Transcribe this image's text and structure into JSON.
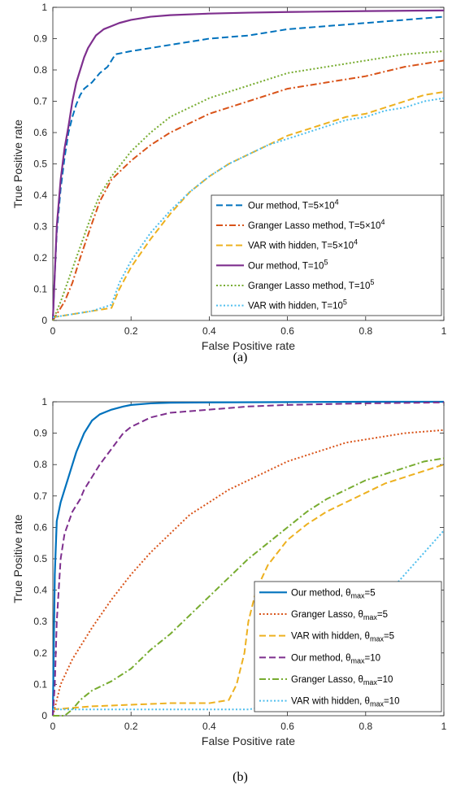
{
  "chart_data": [
    {
      "type": "line",
      "caption": "(a)",
      "xlabel": "False Positive rate",
      "ylabel": "True Positive rate",
      "xlim": [
        0,
        1
      ],
      "ylim": [
        0,
        1
      ],
      "xticks": [
        "0",
        "0.2",
        "0.4",
        "0.6",
        "0.8",
        "1"
      ],
      "yticks": [
        "0",
        "0.1",
        "0.2",
        "0.3",
        "0.4",
        "0.5",
        "0.6",
        "0.7",
        "0.8",
        "0.9",
        "1"
      ],
      "grid": false,
      "legend_position": "bottom-right",
      "series": [
        {
          "name": "Our method, T=5×10^4",
          "label_parts": [
            "Our method, T=5×10",
            "4",
            ""
          ],
          "color": "#0072BD",
          "style": "dashed",
          "x": [
            0,
            0.005,
            0.01,
            0.02,
            0.03,
            0.04,
            0.05,
            0.06,
            0.07,
            0.08,
            0.1,
            0.12,
            0.14,
            0.16,
            0.2,
            0.25,
            0.3,
            0.35,
            0.4,
            0.5,
            0.6,
            0.7,
            0.8,
            0.9,
            1.0
          ],
          "y": [
            0,
            0.15,
            0.28,
            0.42,
            0.52,
            0.6,
            0.65,
            0.69,
            0.72,
            0.74,
            0.76,
            0.79,
            0.81,
            0.85,
            0.86,
            0.87,
            0.88,
            0.89,
            0.9,
            0.91,
            0.93,
            0.94,
            0.95,
            0.96,
            0.97
          ]
        },
        {
          "name": "Granger Lasso method, T=5×10^4",
          "label_parts": [
            "Granger Lasso method, T=5×10",
            "4",
            ""
          ],
          "color": "#D95319",
          "style": "dashdot",
          "x": [
            0,
            0.01,
            0.02,
            0.03,
            0.05,
            0.07,
            0.1,
            0.12,
            0.15,
            0.2,
            0.25,
            0.3,
            0.35,
            0.4,
            0.45,
            0.5,
            0.55,
            0.6,
            0.7,
            0.8,
            0.9,
            1.0
          ],
          "y": [
            0,
            0.02,
            0.04,
            0.06,
            0.12,
            0.2,
            0.31,
            0.38,
            0.45,
            0.51,
            0.56,
            0.6,
            0.63,
            0.66,
            0.68,
            0.7,
            0.72,
            0.74,
            0.76,
            0.78,
            0.81,
            0.83
          ]
        },
        {
          "name": "VAR with hidden, T=5×10^4",
          "label_parts": [
            "VAR with hidden, T=5×10",
            "4",
            ""
          ],
          "color": "#EDB120",
          "style": "dashed",
          "x": [
            0,
            0.05,
            0.1,
            0.15,
            0.17,
            0.2,
            0.25,
            0.3,
            0.35,
            0.4,
            0.45,
            0.5,
            0.55,
            0.6,
            0.65,
            0.7,
            0.75,
            0.8,
            0.85,
            0.9,
            0.95,
            1.0
          ],
          "y": [
            0.01,
            0.02,
            0.03,
            0.04,
            0.1,
            0.17,
            0.26,
            0.34,
            0.41,
            0.46,
            0.5,
            0.53,
            0.56,
            0.59,
            0.61,
            0.63,
            0.65,
            0.66,
            0.68,
            0.7,
            0.72,
            0.73
          ]
        },
        {
          "name": "Our method, T=10^5",
          "label_parts": [
            "Our method, T=10",
            "5",
            ""
          ],
          "color": "#7E2F8E",
          "style": "solid",
          "x": [
            0,
            0.005,
            0.01,
            0.02,
            0.03,
            0.04,
            0.05,
            0.06,
            0.07,
            0.08,
            0.09,
            0.1,
            0.11,
            0.12,
            0.13,
            0.15,
            0.17,
            0.2,
            0.25,
            0.3,
            0.4,
            0.5,
            0.6,
            0.8,
            1.0
          ],
          "y": [
            0,
            0.15,
            0.3,
            0.45,
            0.55,
            0.62,
            0.7,
            0.76,
            0.8,
            0.84,
            0.87,
            0.89,
            0.91,
            0.92,
            0.93,
            0.94,
            0.95,
            0.96,
            0.97,
            0.975,
            0.98,
            0.983,
            0.985,
            0.988,
            0.99
          ]
        },
        {
          "name": "Granger Lasso method, T=10^5",
          "label_parts": [
            "Granger Lasso method, T=10",
            "5",
            ""
          ],
          "color": "#77AC30",
          "style": "dotted",
          "x": [
            0,
            0.02,
            0.04,
            0.06,
            0.08,
            0.1,
            0.12,
            0.15,
            0.2,
            0.25,
            0.3,
            0.35,
            0.4,
            0.45,
            0.5,
            0.55,
            0.6,
            0.7,
            0.8,
            0.9,
            1.0
          ],
          "y": [
            0,
            0.06,
            0.13,
            0.2,
            0.27,
            0.34,
            0.4,
            0.46,
            0.54,
            0.6,
            0.65,
            0.68,
            0.71,
            0.73,
            0.75,
            0.77,
            0.79,
            0.81,
            0.83,
            0.85,
            0.86
          ]
        },
        {
          "name": "VAR with hidden, T=10^5",
          "label_parts": [
            "VAR with hidden, T=10",
            "5",
            ""
          ],
          "color": "#4DBEEE",
          "style": "dotted",
          "x": [
            0,
            0.05,
            0.1,
            0.15,
            0.17,
            0.2,
            0.25,
            0.3,
            0.35,
            0.4,
            0.45,
            0.5,
            0.55,
            0.6,
            0.65,
            0.7,
            0.75,
            0.8,
            0.85,
            0.9,
            0.95,
            1.0
          ],
          "y": [
            0.01,
            0.02,
            0.03,
            0.05,
            0.12,
            0.19,
            0.28,
            0.35,
            0.41,
            0.46,
            0.5,
            0.53,
            0.56,
            0.58,
            0.6,
            0.62,
            0.64,
            0.65,
            0.67,
            0.68,
            0.7,
            0.71
          ]
        }
      ]
    },
    {
      "type": "line",
      "caption": "(b)",
      "xlabel": "False Positive rate",
      "ylabel": "True Positive rate",
      "xlim": [
        0,
        1
      ],
      "ylim": [
        0,
        1
      ],
      "xticks": [
        "0",
        "0.2",
        "0.4",
        "0.6",
        "0.8",
        "1"
      ],
      "yticks": [
        "0",
        "0.1",
        "0.2",
        "0.3",
        "0.4",
        "0.5",
        "0.6",
        "0.7",
        "0.8",
        "0.9",
        "1"
      ],
      "grid": false,
      "legend_position": "bottom-right",
      "series": [
        {
          "name": "Our method, θmax=5",
          "label_parts": [
            "Our method, θ",
            "max",
            "=5"
          ],
          "color": "#0072BD",
          "style": "solid",
          "x": [
            0,
            0.005,
            0.01,
            0.02,
            0.03,
            0.04,
            0.05,
            0.06,
            0.07,
            0.08,
            0.09,
            0.1,
            0.12,
            0.15,
            0.18,
            0.2,
            0.25,
            0.3,
            0.4,
            0.6,
            0.8,
            1.0
          ],
          "y": [
            0,
            0.45,
            0.62,
            0.68,
            0.72,
            0.76,
            0.8,
            0.84,
            0.87,
            0.9,
            0.92,
            0.94,
            0.96,
            0.975,
            0.985,
            0.99,
            0.995,
            0.997,
            0.998,
            0.999,
            1.0,
            1.0
          ]
        },
        {
          "name": "Granger Lasso, θmax=5",
          "label_parts": [
            "Granger Lasso, θ",
            "max",
            "=5"
          ],
          "color": "#D95319",
          "style": "dotted",
          "x": [
            0,
            0.01,
            0.02,
            0.05,
            0.1,
            0.15,
            0.2,
            0.25,
            0.3,
            0.35,
            0.4,
            0.45,
            0.5,
            0.55,
            0.6,
            0.65,
            0.7,
            0.75,
            0.8,
            0.85,
            0.9,
            0.95,
            1.0
          ],
          "y": [
            0,
            0.05,
            0.1,
            0.18,
            0.28,
            0.37,
            0.45,
            0.52,
            0.58,
            0.64,
            0.68,
            0.72,
            0.75,
            0.78,
            0.81,
            0.83,
            0.85,
            0.87,
            0.88,
            0.89,
            0.9,
            0.905,
            0.91
          ]
        },
        {
          "name": "VAR with hidden, θmax=5",
          "label_parts": [
            "VAR with hidden, θ",
            "max",
            "=5"
          ],
          "color": "#EDB120",
          "style": "dashed",
          "x": [
            0,
            0.1,
            0.2,
            0.3,
            0.4,
            0.45,
            0.47,
            0.49,
            0.5,
            0.52,
            0.55,
            0.6,
            0.65,
            0.7,
            0.75,
            0.8,
            0.85,
            0.9,
            0.95,
            1.0
          ],
          "y": [
            0.02,
            0.03,
            0.035,
            0.04,
            0.04,
            0.05,
            0.1,
            0.2,
            0.3,
            0.4,
            0.48,
            0.56,
            0.61,
            0.65,
            0.68,
            0.71,
            0.74,
            0.76,
            0.78,
            0.8
          ]
        },
        {
          "name": "Our method, θmax=10",
          "label_parts": [
            "Our method, θ",
            "max",
            "=10"
          ],
          "color": "#7E2F8E",
          "style": "dashed",
          "x": [
            0,
            0.005,
            0.01,
            0.02,
            0.03,
            0.05,
            0.07,
            0.08,
            0.1,
            0.12,
            0.15,
            0.18,
            0.2,
            0.25,
            0.3,
            0.4,
            0.5,
            0.6,
            0.8,
            1.0
          ],
          "y": [
            0,
            0.1,
            0.3,
            0.5,
            0.58,
            0.65,
            0.69,
            0.72,
            0.76,
            0.8,
            0.85,
            0.9,
            0.92,
            0.95,
            0.965,
            0.975,
            0.985,
            0.99,
            0.995,
            0.998
          ]
        },
        {
          "name": "Granger Lasso, θmax=10",
          "label_parts": [
            "Granger Lasso, θ",
            "max",
            "=10"
          ],
          "color": "#77AC30",
          "style": "dashdot",
          "x": [
            0,
            0.03,
            0.05,
            0.07,
            0.1,
            0.15,
            0.2,
            0.25,
            0.3,
            0.35,
            0.4,
            0.45,
            0.5,
            0.55,
            0.6,
            0.65,
            0.7,
            0.75,
            0.8,
            0.85,
            0.9,
            0.95,
            1.0
          ],
          "y": [
            0,
            0.0,
            0.02,
            0.05,
            0.08,
            0.11,
            0.15,
            0.21,
            0.26,
            0.32,
            0.38,
            0.44,
            0.5,
            0.55,
            0.6,
            0.65,
            0.69,
            0.72,
            0.75,
            0.77,
            0.79,
            0.81,
            0.82
          ]
        },
        {
          "name": "VAR with hidden, θmax=10",
          "label_parts": [
            "VAR with hidden, θ",
            "max",
            "=10"
          ],
          "color": "#4DBEEE",
          "style": "dotted",
          "x": [
            0,
            0.1,
            0.2,
            0.3,
            0.4,
            0.5,
            0.55,
            0.6,
            0.65,
            0.7,
            0.75,
            0.8,
            0.85,
            0.9,
            0.95,
            1.0
          ],
          "y": [
            0.02,
            0.02,
            0.02,
            0.02,
            0.02,
            0.02,
            0.03,
            0.05,
            0.09,
            0.15,
            0.22,
            0.3,
            0.38,
            0.45,
            0.52,
            0.59
          ]
        }
      ]
    }
  ]
}
